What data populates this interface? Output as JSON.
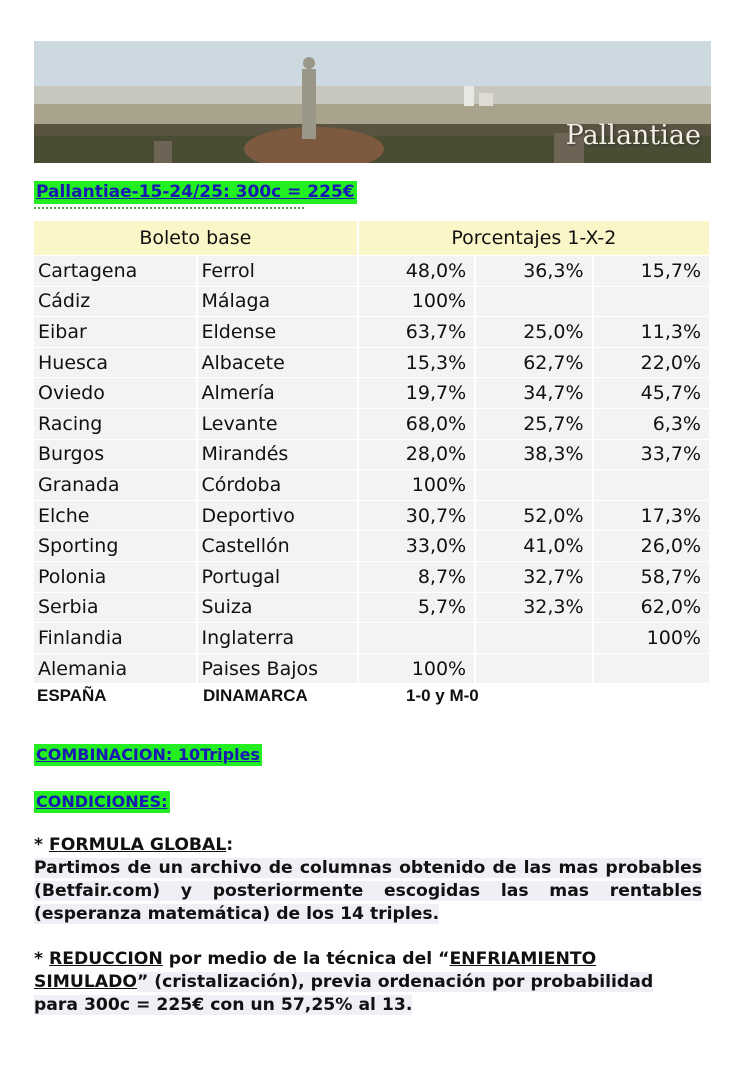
{
  "banner": {
    "brand": "Pallantiae"
  },
  "title": "Pallantiae-15-24/25:  300c = 225€",
  "table": {
    "header_left": "Boleto base",
    "header_right": "Porcentajes 1-X-2",
    "rows": [
      {
        "home": "Cartagena",
        "away": "Ferrol",
        "p1": "48,0%",
        "px": "36,3%",
        "p2": "15,7%"
      },
      {
        "home": "Cádiz",
        "away": "Málaga",
        "p1": "100%",
        "px": "",
        "p2": ""
      },
      {
        "home": "Eibar",
        "away": "Eldense",
        "p1": "63,7%",
        "px": "25,0%",
        "p2": "11,3%"
      },
      {
        "home": "Huesca",
        "away": "Albacete",
        "p1": "15,3%",
        "px": "62,7%",
        "p2": "22,0%"
      },
      {
        "home": "Oviedo",
        "away": "Almería",
        "p1": "19,7%",
        "px": "34,7%",
        "p2": "45,7%"
      },
      {
        "home": "Racing",
        "away": "Levante",
        "p1": "68,0%",
        "px": "25,7%",
        "p2": "6,3%"
      },
      {
        "home": "Burgos",
        "away": "Mirandés",
        "p1": "28,0%",
        "px": "38,3%",
        "p2": "33,7%"
      },
      {
        "home": "Granada",
        "away": "Córdoba",
        "p1": "100%",
        "px": "",
        "p2": ""
      },
      {
        "home": "Elche",
        "away": "Deportivo",
        "p1": "30,7%",
        "px": "52,0%",
        "p2": "17,3%"
      },
      {
        "home": "Sporting",
        "away": "Castellón",
        "p1": "33,0%",
        "px": "41,0%",
        "p2": "26,0%"
      },
      {
        "home": "Polonia",
        "away": "Portugal",
        "p1": "8,7%",
        "px": "32,7%",
        "p2": "58,7%"
      },
      {
        "home": "Serbia",
        "away": "Suiza",
        "p1": "5,7%",
        "px": "32,3%",
        "p2": "62,0%"
      },
      {
        "home": "Finlandia",
        "away": "Inglaterra",
        "p1": "",
        "px": "",
        "p2": "100%"
      },
      {
        "home": "Alemania",
        "away": "Paises Bajos",
        "p1": "100%",
        "px": "",
        "p2": ""
      }
    ]
  },
  "pleno": {
    "home": "ESPAÑA",
    "away": "DINAMARCA",
    "result": "1-0  y  M-0"
  },
  "combinacion": "COMBINACION:  10Triples",
  "condiciones": "CONDICIONES:",
  "formula": {
    "bullet": "*",
    "heading": "FORMULA GLOBAL",
    "colon": ":",
    "text": "Partimos de un archivo de columnas obtenido de las mas probables (Betfair.com) y posteriormente escogidas las mas rentables (esperanza matemática) de los 14 triples."
  },
  "reduccion": {
    "bullet": "*",
    "heading": "REDUCCION",
    "text_a": " por medio  de la técnica del “",
    "heading2": "ENFRIAMIENTO SIMULADO",
    "text_b": "” (cristalización), previa ordenación por probabilidad para 300c = 225€ con un 57,25% al 13."
  },
  "colors": {
    "highlight": "#22ee22",
    "link_text": "#1a1ab0",
    "header_bg": "#fbf6c8",
    "cell_bg": "#f3f3f3"
  }
}
